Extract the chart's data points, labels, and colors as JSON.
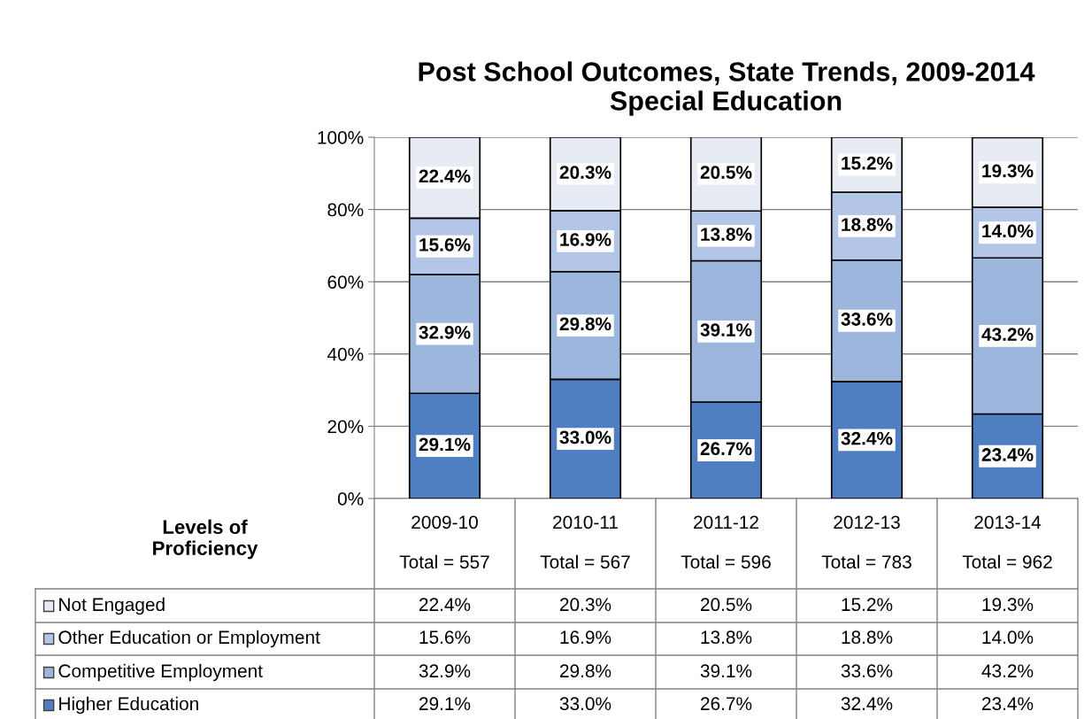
{
  "chart_data": {
    "type": "bar",
    "title": "Post School Outcomes, State Trends, 2009-2014\nSpecial Education",
    "categories": [
      "2009-10\n\nTotal = 557",
      "2010-11\n\nTotal = 567",
      "2011-12\n\nTotal = 596",
      "2012-13\n\nTotal = 783",
      "2013-14\n\nTotal = 962"
    ],
    "stacked": true,
    "series": [
      {
        "name": "Higher Education",
        "color": "#4f7fc0",
        "values": [
          29.1,
          33.0,
          26.7,
          32.4,
          23.4
        ],
        "value_labels": [
          "29.1%",
          "33.0%",
          "26.7%",
          "32.4%",
          "23.4%"
        ]
      },
      {
        "name": "Competitive Employment",
        "color": "#9db6de",
        "values": [
          32.9,
          29.8,
          39.1,
          33.6,
          43.2
        ],
        "value_labels": [
          "32.9%",
          "29.8%",
          "39.1%",
          "33.6%",
          "43.2%"
        ]
      },
      {
        "name": "Other Education or Employment",
        "color": "#b3c6e7",
        "values": [
          15.6,
          16.9,
          13.8,
          18.8,
          14.0
        ],
        "value_labels": [
          "15.6%",
          "16.9%",
          "13.8%",
          "18.8%",
          "14.0%"
        ]
      },
      {
        "name": "Not Engaged",
        "color": "#e6ebf4",
        "values": [
          22.4,
          20.3,
          20.5,
          15.2,
          19.3
        ],
        "value_labels": [
          "22.4%",
          "20.3%",
          "20.5%",
          "15.2%",
          "19.3%"
        ]
      }
    ],
    "ylim": [
      0,
      100
    ],
    "yticks": [
      {
        "value": 0,
        "label": "0%"
      },
      {
        "value": 20,
        "label": "20%"
      },
      {
        "value": 40,
        "label": "40%"
      },
      {
        "value": 60,
        "label": "60%"
      },
      {
        "value": 80,
        "label": "80%"
      },
      {
        "value": 100,
        "label": "100%"
      }
    ],
    "grid": "y",
    "legend": "bottom",
    "annotations": [
      "Levels of\nProficiency"
    ]
  }
}
